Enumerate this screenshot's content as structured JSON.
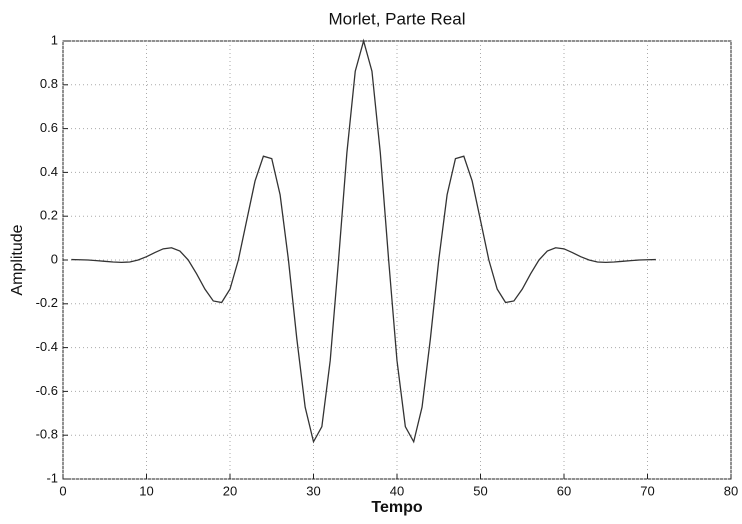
{
  "chart_data": {
    "type": "line",
    "title": "Morlet, Parte Real",
    "x_label": "Tempo",
    "y_label": "Amplitude",
    "x": [
      1,
      2,
      3,
      4,
      5,
      6,
      7,
      8,
      9,
      10,
      11,
      12,
      13,
      14,
      15,
      16,
      17,
      18,
      19,
      20,
      21,
      22,
      23,
      24,
      25,
      26,
      27,
      28,
      29,
      30,
      31,
      32,
      33,
      34,
      35,
      36,
      37,
      38,
      39,
      40,
      41,
      42,
      43,
      44,
      45,
      46,
      47,
      48,
      49,
      50,
      51,
      52,
      53,
      54,
      55,
      56,
      57,
      58,
      59,
      60,
      61,
      62,
      63,
      64,
      65,
      66,
      67,
      68,
      69,
      70,
      71
    ],
    "series": [
      {
        "name": "Morlet",
        "color": "#333333",
        "values": [
          0.002,
          0.001,
          0,
          -0.003,
          -0.006,
          -0.009,
          -0.011,
          -0.009,
          0,
          0.015,
          0.034,
          0.051,
          0.056,
          0.041,
          0,
          -0.063,
          -0.133,
          -0.187,
          -0.194,
          -0.133,
          0,
          0.181,
          0.361,
          0.474,
          0.463,
          0.298,
          0,
          -0.359,
          -0.672,
          -0.83,
          -0.761,
          -0.46,
          0,
          0.49,
          0.862,
          1,
          0.862,
          0.49,
          0,
          -0.46,
          -0.761,
          -0.83,
          -0.672,
          -0.359,
          0,
          0.298,
          0.463,
          0.474,
          0.361,
          0.181,
          0,
          -0.133,
          -0.194,
          -0.187,
          -0.133,
          -0.063,
          0,
          0.041,
          0.056,
          0.051,
          0.034,
          0.015,
          0,
          -0.009,
          -0.011,
          -0.009,
          -0.006,
          -0.003,
          0,
          0.001,
          0.002
        ]
      }
    ],
    "xlim": [
      0,
      80
    ],
    "xticks": [
      0,
      10,
      20,
      30,
      40,
      50,
      60,
      70,
      80
    ],
    "ylim": [
      -1,
      1
    ],
    "yticks": [
      -1,
      -0.8,
      -0.6,
      -0.4,
      -0.2,
      0,
      0.2,
      0.4,
      0.6,
      0.8,
      1
    ],
    "grid": true
  }
}
